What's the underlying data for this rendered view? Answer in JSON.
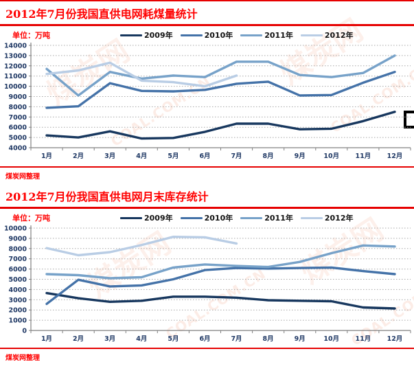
{
  "watermark": {
    "brand": "煤炭网",
    "domain": "COAL.COM.CN"
  },
  "charts": [
    {
      "title": "2012年7月份我国直供电网耗煤量统计",
      "unit_label": "单位：万吨",
      "source_label": "煤炭网整理",
      "chart_data": {
        "type": "line",
        "categories": [
          "1月",
          "2月",
          "3月",
          "4月",
          "5月",
          "6月",
          "7月",
          "8月",
          "9月",
          "10月",
          "11月",
          "12月"
        ],
        "series": [
          {
            "name": "2009年",
            "color": "#17375E",
            "values": [
              5200,
              5000,
              5600,
              4900,
              4950,
              5550,
              6350,
              6350,
              5800,
              5850,
              6600,
              7500
            ]
          },
          {
            "name": "2010年",
            "color": "#4472A8",
            "values": [
              7900,
              8050,
              10300,
              9550,
              9500,
              9650,
              10250,
              10450,
              9100,
              9150,
              10350,
              11400
            ]
          },
          {
            "name": "2011年",
            "color": "#77A2C9",
            "values": [
              11700,
              9100,
              11400,
              10750,
              11050,
              10900,
              12400,
              12400,
              11100,
              10900,
              11300,
              13000
            ]
          },
          {
            "name": "2012年",
            "color": "#B9CDE5",
            "values": [
              11200,
              11550,
              12300,
              10550,
              10400,
              10000,
              11050,
              null,
              null,
              null,
              null,
              null
            ]
          }
        ],
        "ylim": [
          4000,
          14000
        ],
        "ytick_step": 1000,
        "grid": "horizontal-dotted",
        "legend_position": "top",
        "xlabel": "",
        "ylabel": "万吨"
      }
    },
    {
      "title": "2012年7月份我国直供电网月末库存统计",
      "unit_label": "单位：万吨",
      "source_label": "煤炭网整理",
      "chart_data": {
        "type": "line",
        "categories": [
          "1月",
          "2月",
          "3月",
          "4月",
          "5月",
          "6月",
          "7月",
          "8月",
          "9月",
          "10月",
          "11月",
          "12月"
        ],
        "series": [
          {
            "name": "2009年",
            "color": "#17375E",
            "values": [
              3650,
              3150,
              2800,
              2900,
              3300,
              3300,
              3200,
              2950,
              2900,
              2850,
              2250,
              2150
            ]
          },
          {
            "name": "2010年",
            "color": "#4472A8",
            "values": [
              2600,
              4950,
              4300,
              4400,
              5000,
              5900,
              6100,
              6050,
              6100,
              6150,
              5800,
              5500
            ]
          },
          {
            "name": "2011年",
            "color": "#77A2C9",
            "values": [
              5500,
              5400,
              5100,
              5200,
              6150,
              6450,
              6300,
              6200,
              6700,
              7550,
              8300,
              8200
            ]
          },
          {
            "name": "2012年",
            "color": "#B9CDE5",
            "values": [
              8050,
              7350,
              7650,
              8350,
              9150,
              9100,
              8500,
              null,
              null,
              null,
              null,
              null
            ]
          }
        ],
        "ylim": [
          0,
          10000
        ],
        "ytick_step": 1000,
        "grid": "horizontal-dotted",
        "legend_position": "top",
        "xlabel": "",
        "ylabel": "万吨"
      }
    }
  ],
  "colors": {
    "accent_red": "#E60000",
    "title_red": "#FF0000",
    "axis_label": "#1F3864",
    "gridline": "#A6A6A6",
    "axis": "#808080"
  }
}
